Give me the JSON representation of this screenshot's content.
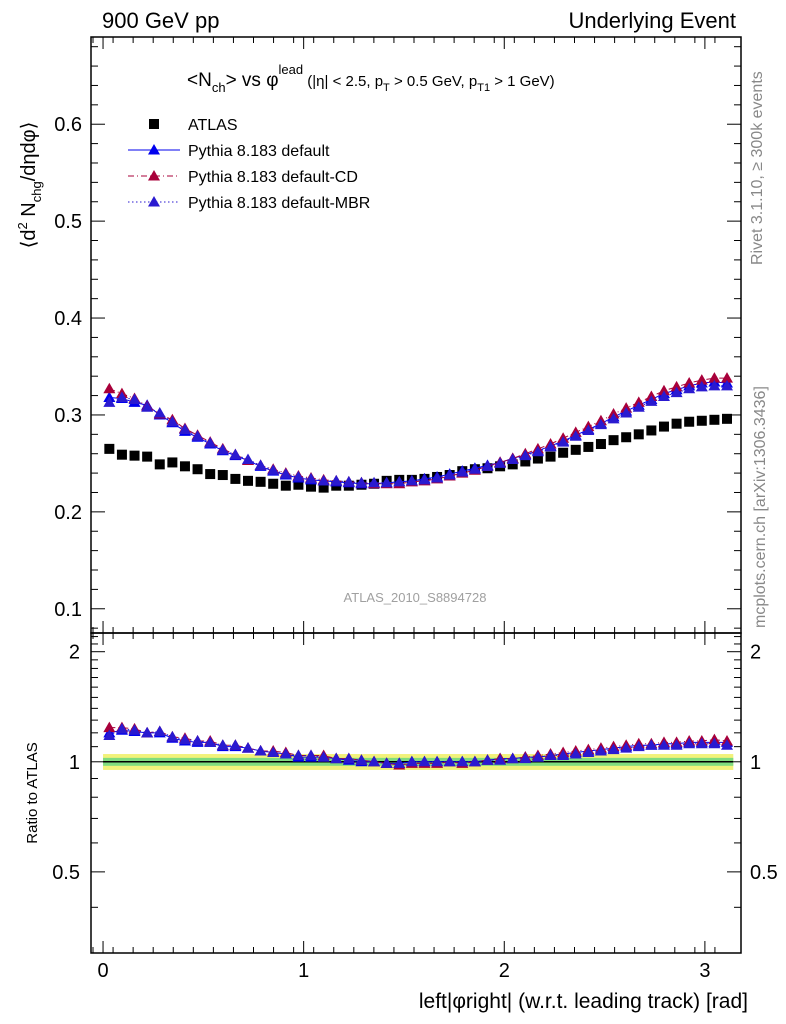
{
  "header": {
    "left_title": "900 GeV pp",
    "right_title": "Underlying Event"
  },
  "side_labels": {
    "rivet": "Rivet 3.1.10, ≥ 300k events",
    "mcplots": "mcplots.cern.ch [arXiv:1306.3436]"
  },
  "chart_data": {
    "type": "scatter",
    "title": "<Nch> vs φlead (|η| < 2.5, pT > 0.5 GeV, pT1 > 1 GeV)",
    "title_parts": {
      "n": "<N",
      "ch": "ch",
      "vs": "> vs φ",
      "lead": "lead",
      "cuts_a": " (|η| < 2.5, p",
      "t": "T",
      "cuts_b": " > 0.5 GeV, p",
      "t1": "T1",
      "cuts_c": " > 1 GeV)"
    },
    "ylabel_parts": {
      "a": "⟨d",
      "sup2": "2",
      "b": " N",
      "chg": "chg",
      "c": "/dηdφ⟩"
    },
    "xlabel": "left|φright| (w.r.t. leading track) [rad]",
    "ratio_ylabel": "Ratio to ATLAS",
    "watermark": "ATLAS_2010_S8894728",
    "xlim": [
      -0.06,
      3.18
    ],
    "ylim": [
      0.075,
      0.69
    ],
    "ratio_ylim": [
      0.3,
      2.25
    ],
    "x_ticks": [
      "0",
      "1",
      "2",
      "3"
    ],
    "y_ticks": [
      "0.1",
      "0.2",
      "0.3",
      "0.4",
      "0.5",
      "0.6"
    ],
    "ratio_ticks": [
      "0.5",
      "1",
      "2"
    ],
    "legend_position": "top-left",
    "x": [
      0.0314,
      0.0942,
      0.157,
      0.2199,
      0.2827,
      0.3456,
      0.4084,
      0.4712,
      0.5341,
      0.5969,
      0.6597,
      0.7226,
      0.7854,
      0.8482,
      0.9111,
      0.9739,
      1.0367,
      1.0996,
      1.1624,
      1.2252,
      1.2881,
      1.3509,
      1.4137,
      1.4766,
      1.5394,
      1.6022,
      1.6651,
      1.7279,
      1.7907,
      1.8536,
      1.9164,
      1.9792,
      2.0421,
      2.1049,
      2.1677,
      2.2306,
      2.2934,
      2.3562,
      2.4191,
      2.4819,
      2.5447,
      2.6076,
      2.6704,
      2.7332,
      2.7961,
      2.8589,
      2.9217,
      2.9846,
      3.0474,
      3.1102
    ],
    "series": [
      {
        "name": "ATLAS",
        "color": "#000000",
        "marker": "square",
        "values": [
          0.265,
          0.259,
          0.258,
          0.257,
          0.249,
          0.251,
          0.247,
          0.244,
          0.239,
          0.238,
          0.234,
          0.232,
          0.231,
          0.229,
          0.227,
          0.228,
          0.226,
          0.225,
          0.227,
          0.227,
          0.228,
          0.229,
          0.232,
          0.233,
          0.233,
          0.234,
          0.236,
          0.238,
          0.242,
          0.244,
          0.245,
          0.247,
          0.249,
          0.252,
          0.255,
          0.257,
          0.261,
          0.264,
          0.267,
          0.27,
          0.274,
          0.277,
          0.28,
          0.284,
          0.288,
          0.291,
          0.293,
          0.294,
          0.295,
          0.296
        ],
        "ratio": [
          1.0,
          1.0,
          1.0,
          1.0,
          1.0,
          1.0,
          1.0,
          1.0,
          1.0,
          1.0,
          1.0,
          1.0,
          1.0,
          1.0,
          1.0,
          1.0,
          1.0,
          1.0,
          1.0,
          1.0,
          1.0,
          1.0,
          1.0,
          1.0,
          1.0,
          1.0,
          1.0,
          1.0,
          1.0,
          1.0,
          1.0,
          1.0,
          1.0,
          1.0,
          1.0,
          1.0,
          1.0,
          1.0,
          1.0,
          1.0,
          1.0,
          1.0,
          1.0,
          1.0,
          1.0,
          1.0,
          1.0,
          1.0,
          1.0,
          1.0
        ]
      },
      {
        "name": "Pythia 8.183 default",
        "color": "#0000ee",
        "marker": "triangle",
        "line": "solid",
        "values": [
          0.318,
          0.317,
          0.313,
          0.31,
          0.3,
          0.292,
          0.283,
          0.277,
          0.27,
          0.263,
          0.258,
          0.253,
          0.247,
          0.242,
          0.238,
          0.235,
          0.233,
          0.232,
          0.231,
          0.23,
          0.229,
          0.229,
          0.23,
          0.231,
          0.232,
          0.234,
          0.236,
          0.239,
          0.242,
          0.245,
          0.248,
          0.251,
          0.255,
          0.259,
          0.263,
          0.268,
          0.273,
          0.279,
          0.285,
          0.291,
          0.298,
          0.304,
          0.31,
          0.316,
          0.322,
          0.326,
          0.33,
          0.333,
          0.334,
          0.333
        ],
        "ratio": [
          1.2,
          1.22,
          1.21,
          1.2,
          1.2,
          1.16,
          1.14,
          1.13,
          1.13,
          1.1,
          1.1,
          1.09,
          1.07,
          1.06,
          1.05,
          1.03,
          1.03,
          1.03,
          1.02,
          1.01,
          1.0,
          1.0,
          0.99,
          0.99,
          1.0,
          1.0,
          1.0,
          1.0,
          1.0,
          1.0,
          1.01,
          1.02,
          1.02,
          1.03,
          1.03,
          1.04,
          1.05,
          1.06,
          1.07,
          1.08,
          1.09,
          1.1,
          1.11,
          1.11,
          1.12,
          1.12,
          1.13,
          1.13,
          1.13,
          1.13
        ]
      },
      {
        "name": "Pythia 8.183 default-CD",
        "color": "#a8003a",
        "marker": "triangle",
        "line": "dashdot",
        "values": [
          0.327,
          0.322,
          0.317,
          0.309,
          0.301,
          0.295,
          0.286,
          0.279,
          0.272,
          0.265,
          0.259,
          0.253,
          0.248,
          0.244,
          0.24,
          0.237,
          0.235,
          0.233,
          0.232,
          0.231,
          0.23,
          0.229,
          0.229,
          0.229,
          0.231,
          0.232,
          0.234,
          0.237,
          0.24,
          0.243,
          0.247,
          0.251,
          0.255,
          0.26,
          0.265,
          0.27,
          0.276,
          0.282,
          0.288,
          0.294,
          0.301,
          0.307,
          0.313,
          0.319,
          0.325,
          0.329,
          0.333,
          0.336,
          0.338,
          0.338
        ],
        "ratio": [
          1.24,
          1.24,
          1.23,
          1.2,
          1.21,
          1.17,
          1.16,
          1.14,
          1.14,
          1.11,
          1.11,
          1.09,
          1.07,
          1.07,
          1.06,
          1.04,
          1.04,
          1.04,
          1.02,
          1.02,
          1.01,
          1.0,
          0.99,
          0.98,
          0.99,
          0.99,
          0.99,
          1.0,
          0.99,
          1.0,
          1.01,
          1.02,
          1.02,
          1.03,
          1.04,
          1.05,
          1.06,
          1.07,
          1.08,
          1.09,
          1.1,
          1.11,
          1.12,
          1.12,
          1.13,
          1.13,
          1.14,
          1.14,
          1.15,
          1.14
        ]
      },
      {
        "name": "Pythia 8.183 default-MBR",
        "color": "#2a1ad0",
        "marker": "triangle",
        "line": "dotted",
        "values": [
          0.313,
          0.318,
          0.316,
          0.308,
          0.302,
          0.293,
          0.285,
          0.278,
          0.271,
          0.264,
          0.259,
          0.254,
          0.248,
          0.243,
          0.239,
          0.236,
          0.234,
          0.232,
          0.232,
          0.231,
          0.23,
          0.23,
          0.23,
          0.231,
          0.232,
          0.233,
          0.235,
          0.238,
          0.241,
          0.244,
          0.247,
          0.25,
          0.254,
          0.258,
          0.262,
          0.267,
          0.272,
          0.278,
          0.284,
          0.29,
          0.296,
          0.302,
          0.308,
          0.314,
          0.319,
          0.323,
          0.327,
          0.329,
          0.33,
          0.33
        ],
        "ratio": [
          1.18,
          1.23,
          1.22,
          1.2,
          1.21,
          1.17,
          1.15,
          1.14,
          1.13,
          1.11,
          1.11,
          1.09,
          1.07,
          1.06,
          1.05,
          1.04,
          1.04,
          1.03,
          1.02,
          1.02,
          1.01,
          1.0,
          0.99,
          0.99,
          1.0,
          1.0,
          1.0,
          1.0,
          1.0,
          1.0,
          1.01,
          1.01,
          1.02,
          1.02,
          1.03,
          1.04,
          1.04,
          1.05,
          1.06,
          1.07,
          1.08,
          1.09,
          1.1,
          1.11,
          1.11,
          1.11,
          1.12,
          1.12,
          1.12,
          1.11
        ]
      }
    ],
    "error_bands": [
      {
        "name": "stat",
        "color": "#7fdc7f",
        "half_width": 0.025
      },
      {
        "name": "total",
        "color": "#f2f27a",
        "half_width": 0.05
      }
    ]
  }
}
